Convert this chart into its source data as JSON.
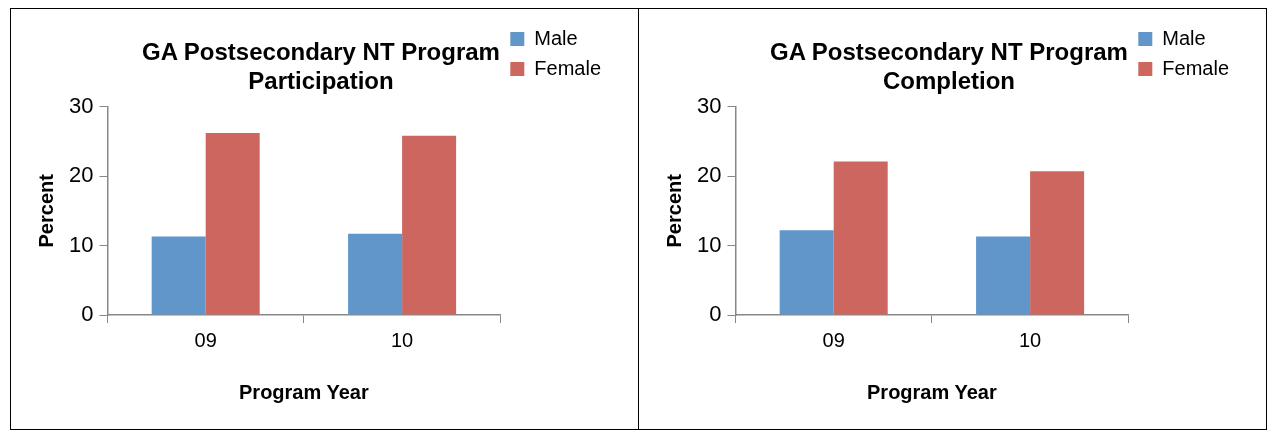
{
  "chart_data": [
    {
      "type": "bar",
      "title": "GA Postsecondary NT Program Participation",
      "xlabel": "Program Year",
      "ylabel": "Percent",
      "categories": [
        "09",
        "10"
      ],
      "series": [
        {
          "name": "Male",
          "color": "#6096c9",
          "values": [
            11.3,
            11.7
          ]
        },
        {
          "name": "Female",
          "color": "#cd665f",
          "values": [
            26.2,
            25.8
          ]
        }
      ],
      "ylim": [
        0,
        30
      ],
      "yticks": [
        0,
        10,
        20,
        30
      ],
      "grid": false,
      "legend": "top right"
    },
    {
      "type": "bar",
      "title": "GA Postsecondary NT Program Completion",
      "xlabel": "Program Year",
      "ylabel": "Percent",
      "categories": [
        "09",
        "10"
      ],
      "series": [
        {
          "name": "Male",
          "color": "#6096c9",
          "values": [
            12.2,
            11.3
          ]
        },
        {
          "name": "Female",
          "color": "#cd665f",
          "values": [
            22.1,
            20.7
          ]
        }
      ],
      "ylim": [
        0,
        30
      ],
      "yticks": [
        0,
        10,
        20,
        30
      ],
      "grid": false,
      "legend": "top right"
    }
  ]
}
